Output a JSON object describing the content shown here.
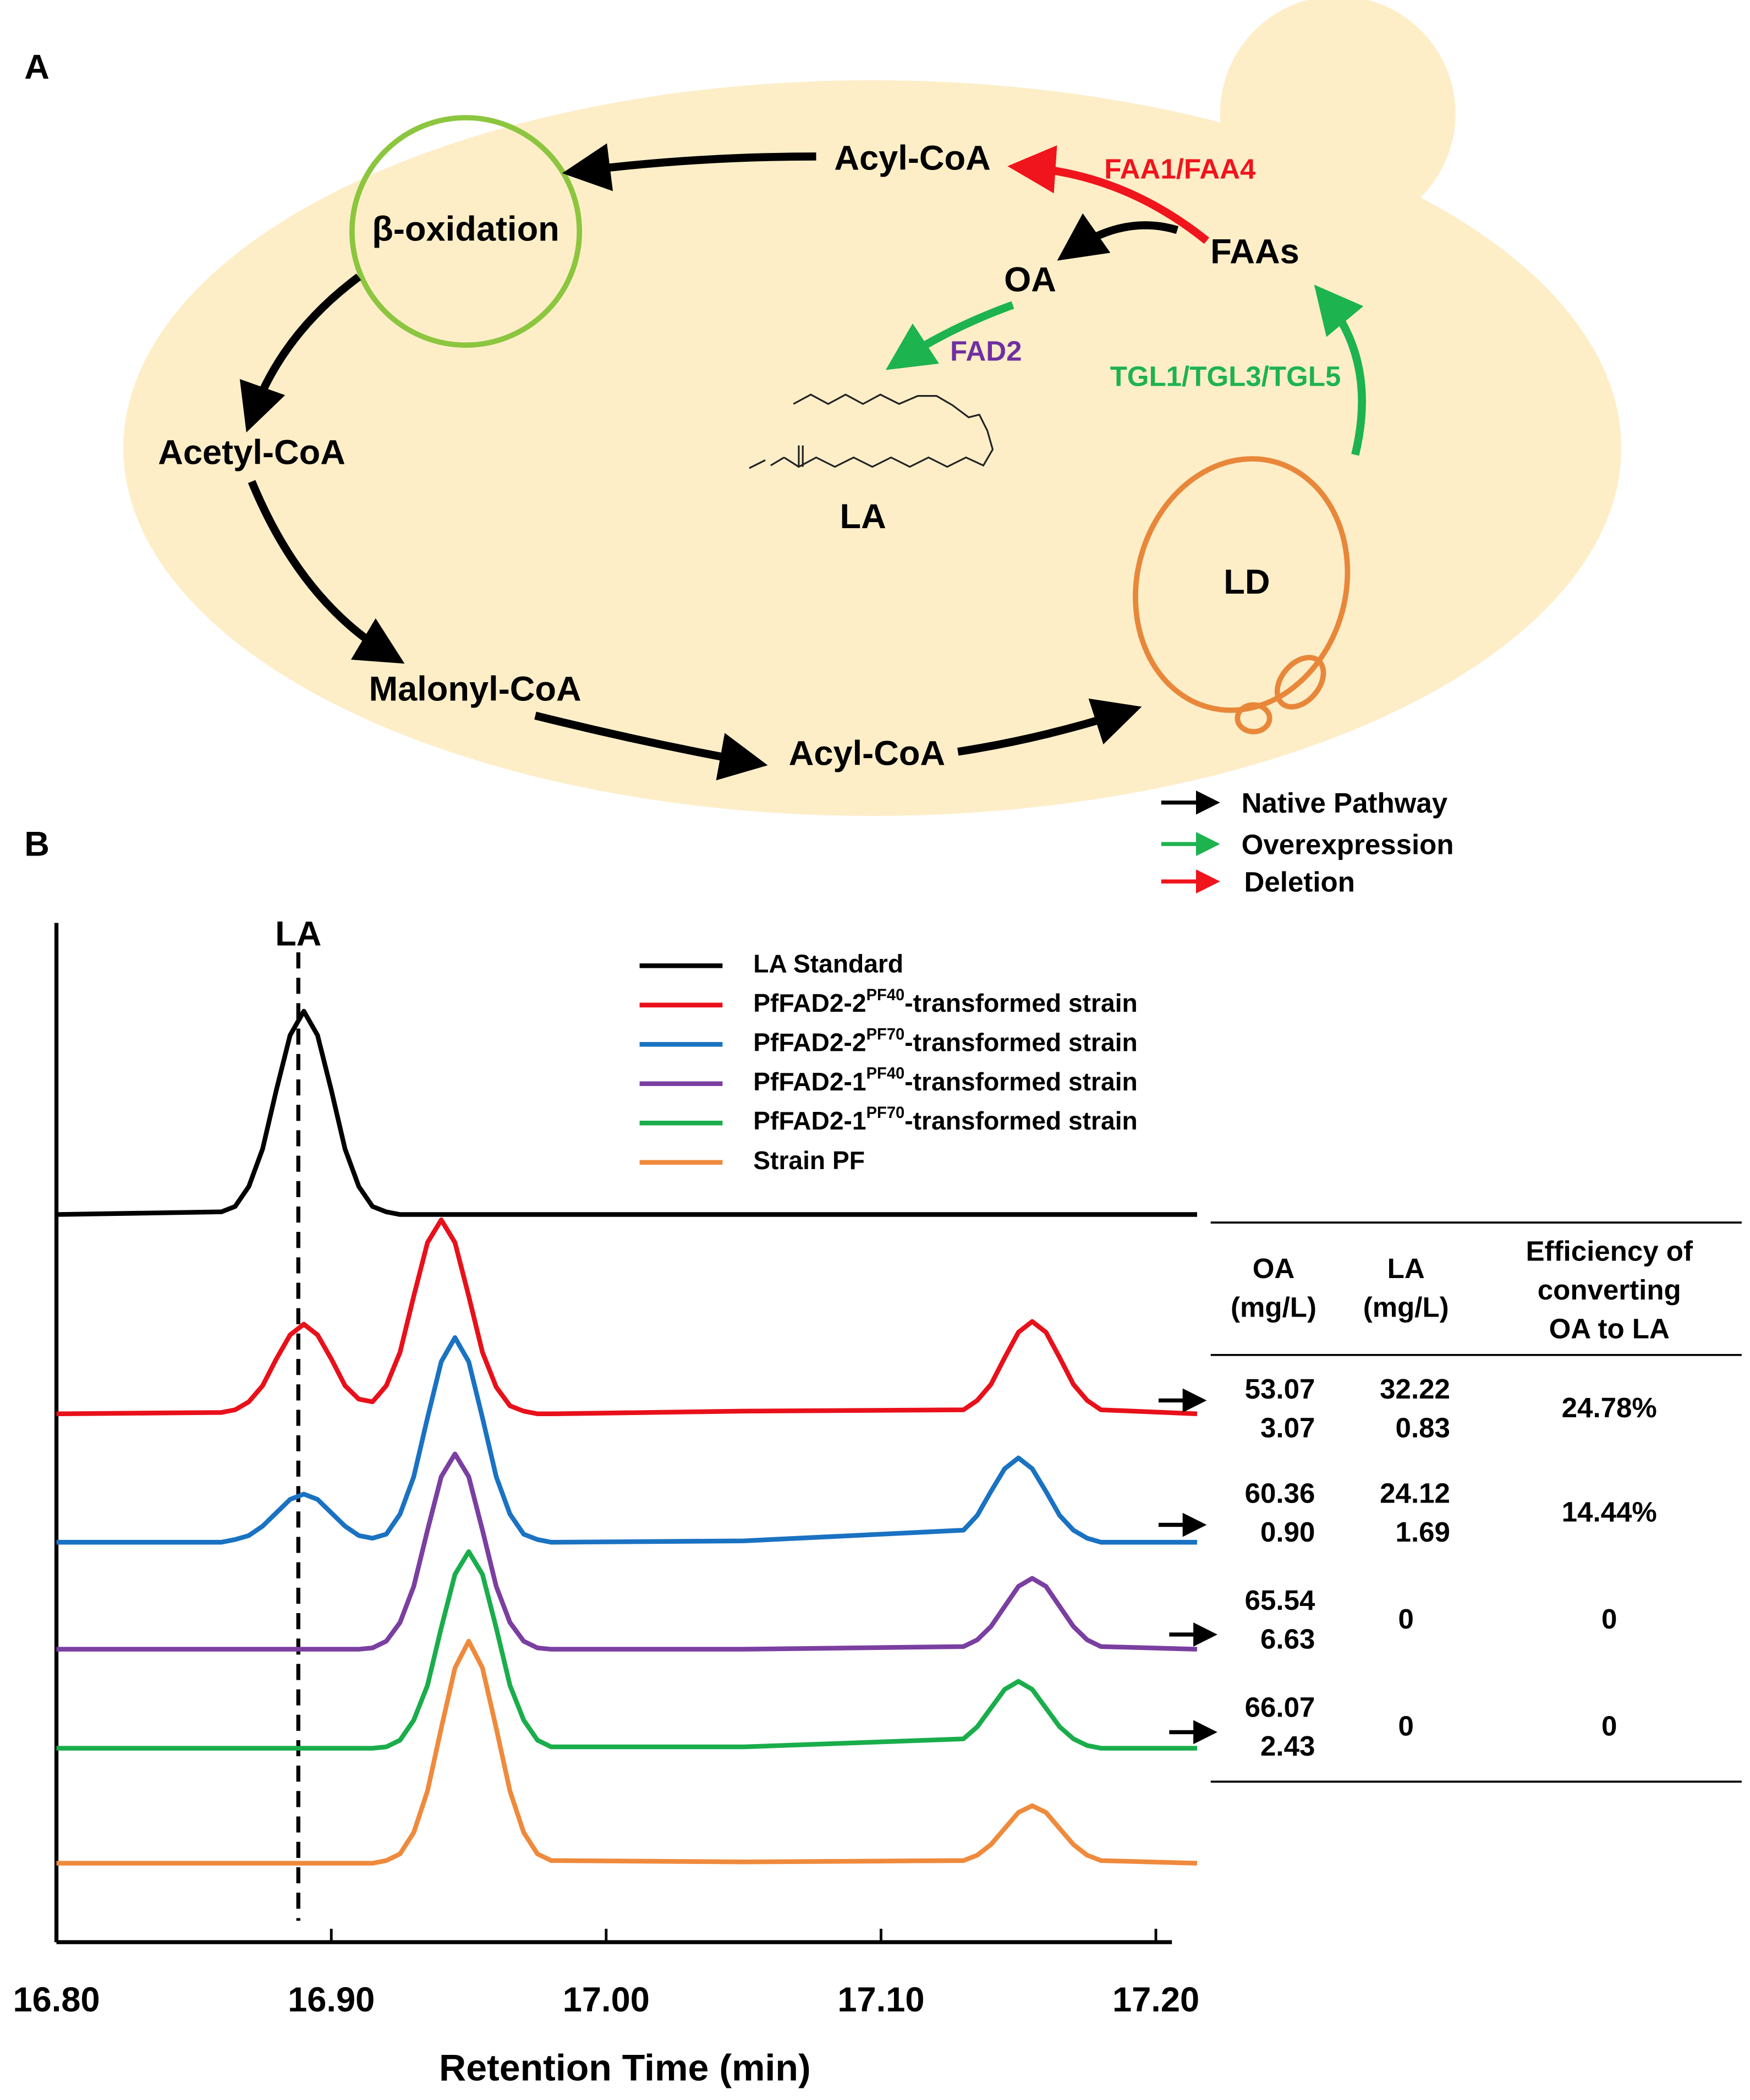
{
  "panel_a": {
    "label": "A",
    "beta_oxidation": "β-oxidation",
    "acyl_coa_top": "Acyl-CoA",
    "faa1_faa4": "FAA1/FAA4",
    "faas": "FAAs",
    "oa": "OA",
    "fad2": "FAD2",
    "tgl": "TGL1/TGL3/TGL5",
    "la": "LA",
    "ld": "LD",
    "acetyl_coa": "Acetyl-CoA",
    "malonyl_coa": "Malonyl-CoA",
    "acyl_coa_bottom": "Acyl-CoA",
    "legend": [
      "Native Pathway",
      "Overexpression",
      "Deletion"
    ]
  },
  "panel_b_label": "B",
  "chart_data": {
    "type": "line",
    "xlabel": "Retention Time (min)",
    "x": [
      16.8,
      16.86,
      16.865,
      16.87,
      16.875,
      16.88,
      16.885,
      16.89,
      16.895,
      16.9,
      16.905,
      16.91,
      16.915,
      16.92,
      16.925,
      16.93,
      16.935,
      16.94,
      16.945,
      16.95,
      16.955,
      16.96,
      16.965,
      16.97,
      16.975,
      16.98,
      17.05,
      17.13,
      17.135,
      17.14,
      17.145,
      17.15,
      17.155,
      17.16,
      17.165,
      17.17,
      17.175,
      17.18,
      17.215
    ],
    "xlim": [
      16.8,
      17.216
    ],
    "xticks": [
      {
        "value": 16.8,
        "label": "16.80"
      },
      {
        "value": 16.9,
        "label": "16.90"
      },
      {
        "value": 17.0,
        "label": "17.00"
      },
      {
        "value": 17.1,
        "label": "17.10"
      },
      {
        "value": 17.2,
        "label": "17.20"
      }
    ],
    "ylim": [
      0,
      760
    ],
    "annotations": [
      {
        "text": "LA",
        "x": 16.888
      }
    ],
    "series": [
      {
        "name": "LA Standard",
        "color": "#000000",
        "values": [
          542,
          544,
          548,
          563,
          591,
          635,
          676,
          694,
          676,
          635,
          591,
          563,
          548,
          544,
          542,
          542,
          542,
          542,
          542,
          542,
          542,
          542,
          542,
          542,
          542,
          542,
          542,
          542,
          542,
          542,
          542,
          542,
          542,
          542,
          542,
          542,
          542,
          542,
          542
        ]
      },
      {
        "name": "PfFAD2-2PF40-transformed strain",
        "color": "#e8101a",
        "values": [
          393,
          394,
          396,
          402,
          414,
          434,
          452,
          460,
          452,
          434,
          414,
          404,
          402,
          414,
          439,
          481,
          521,
          538,
          521,
          481,
          439,
          413,
          399,
          395,
          393,
          393,
          395,
          396,
          403,
          415,
          435,
          454,
          462,
          454,
          435,
          415,
          403,
          396,
          393
        ]
      },
      {
        "name": "PfFAD2-2PF70-transformed strain",
        "color": "#1a72c2",
        "values": [
          297,
          297,
          299,
          302,
          309,
          319,
          329,
          333,
          329,
          319,
          309,
          302,
          300,
          303,
          318,
          346,
          390,
          432,
          450,
          432,
          390,
          346,
          318,
          303,
          299,
          297,
          298,
          306,
          317,
          335,
          352,
          360,
          352,
          335,
          317,
          306,
          300,
          297,
          297
        ]
      },
      {
        "name": "PfFAD2-1PF40-transformed strain",
        "color": "#7a3fa0",
        "values": [
          217,
          217,
          217,
          217,
          217,
          217,
          217,
          217,
          217,
          217,
          217,
          217,
          218,
          223,
          237,
          264,
          306,
          346,
          363,
          346,
          306,
          264,
          237,
          223,
          218,
          217,
          217,
          219,
          224,
          234,
          249,
          264,
          270,
          264,
          249,
          234,
          224,
          219,
          217
        ]
      },
      {
        "name": "PfFAD2-1PF70-transformed strain",
        "color": "#1aad4b",
        "values": [
          143,
          143,
          143,
          143,
          143,
          143,
          143,
          143,
          143,
          143,
          143,
          143,
          143,
          144,
          149,
          164,
          190,
          233,
          273,
          290,
          273,
          233,
          190,
          164,
          149,
          144,
          144,
          150,
          159,
          173,
          187,
          193,
          187,
          173,
          159,
          150,
          145,
          143,
          143
        ]
      },
      {
        "name": "Strain PF",
        "color": "#ef8a3c",
        "values": [
          57,
          57,
          57,
          57,
          57,
          57,
          57,
          57,
          57,
          57,
          57,
          57,
          57,
          59,
          64,
          80,
          111,
          158,
          203,
          223,
          203,
          158,
          111,
          80,
          64,
          59,
          58,
          59,
          63,
          71,
          83,
          95,
          100,
          95,
          83,
          71,
          63,
          59,
          57
        ]
      }
    ]
  },
  "table": {
    "headers": [
      [
        "OA",
        "(mg/L)"
      ],
      [
        "LA",
        "(mg/L)"
      ],
      [
        "Efficiency of",
        "converting",
        "OA to LA"
      ]
    ],
    "rows": [
      [
        [
          "53.07",
          "3.07"
        ],
        [
          "32.22",
          "0.83"
        ],
        [
          "24.78%"
        ]
      ],
      [
        [
          "60.36",
          "0.90"
        ],
        [
          "24.12",
          "1.69"
        ],
        [
          "14.44%"
        ]
      ],
      [
        [
          "65.54",
          "6.63"
        ],
        [
          "0"
        ],
        [
          "0"
        ]
      ],
      [
        [
          "66.07",
          "2.43"
        ],
        [
          "0"
        ],
        [
          "0"
        ]
      ]
    ]
  }
}
